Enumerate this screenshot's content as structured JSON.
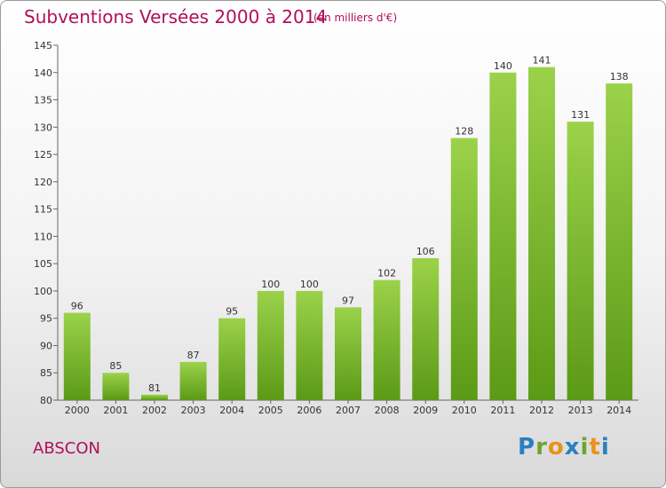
{
  "header": {
    "title": "Subventions Versées 2000 à 2014",
    "unit": "(en milliers d'€)"
  },
  "footer": {
    "commune": "ABSCON",
    "brand": "Proxiti"
  },
  "colors": {
    "title": "#b0105a",
    "bar_top": "#9bd24a",
    "bar_bottom": "#5b9a16"
  },
  "chart_data": {
    "type": "bar",
    "title": "Subventions Versées 2000 à 2014",
    "xlabel": "",
    "ylabel": "",
    "categories": [
      "2000",
      "2001",
      "2002",
      "2003",
      "2004",
      "2005",
      "2006",
      "2007",
      "2008",
      "2009",
      "2010",
      "2011",
      "2012",
      "2013",
      "2014"
    ],
    "values": [
      96,
      85,
      81,
      87,
      95,
      100,
      100,
      97,
      102,
      106,
      128,
      140,
      141,
      131,
      138
    ],
    "ylim": [
      80,
      145
    ],
    "yticks": [
      80,
      85,
      90,
      95,
      100,
      105,
      110,
      115,
      120,
      125,
      130,
      135,
      140,
      145
    ],
    "grid": false,
    "data_labels": true
  }
}
